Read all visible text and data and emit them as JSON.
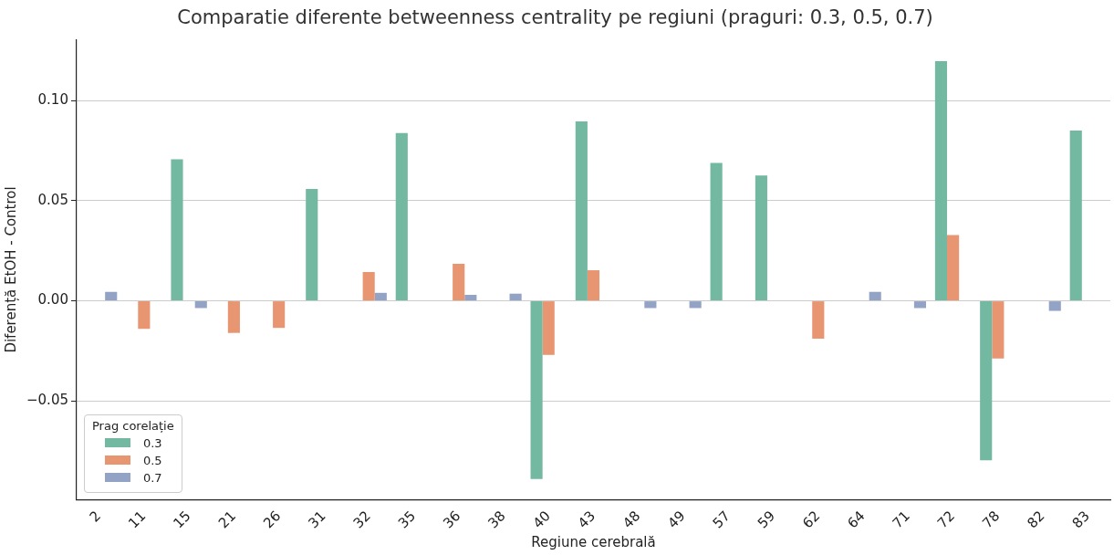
{
  "chart_data": {
    "type": "bar",
    "title": "Comparatie diferente betweenness centrality pe regiuni (praguri: 0.3, 0.5, 0.7)",
    "xlabel": "Regiune cerebrală",
    "ylabel": "Diferență EtOH - Control",
    "legend_title": "Prag corelație",
    "legend": "bottom left",
    "grid": "y",
    "categories": [
      "2",
      "11",
      "15",
      "21",
      "26",
      "31",
      "32",
      "35",
      "36",
      "38",
      "40",
      "43",
      "48",
      "49",
      "57",
      "59",
      "62",
      "64",
      "71",
      "72",
      "78",
      "82",
      "83"
    ],
    "ylim": [
      -0.0995,
      0.1306
    ],
    "yticks": [
      {
        "value": -0.05,
        "label": "−0.05"
      },
      {
        "value": 0,
        "label": "0.00"
      },
      {
        "value": 0.05,
        "label": "0.05"
      },
      {
        "value": 0.1,
        "label": "0.10"
      }
    ],
    "series": [
      {
        "name": "0.3",
        "color": "#73b8a0",
        "values": [
          null,
          null,
          0.0707,
          null,
          null,
          0.0559,
          null,
          0.0838,
          null,
          null,
          -0.089,
          0.0896,
          null,
          null,
          0.0689,
          0.0626,
          null,
          null,
          null,
          0.1198,
          -0.0797,
          null,
          0.0851
        ]
      },
      {
        "name": "0.5",
        "color": "#e89572",
        "values": [
          null,
          -0.014,
          null,
          -0.016,
          -0.0135,
          null,
          0.0144,
          null,
          0.0185,
          null,
          -0.027,
          0.0153,
          null,
          null,
          null,
          null,
          -0.0189,
          null,
          null,
          0.0329,
          -0.0288,
          null,
          null
        ]
      },
      {
        "name": "0.7",
        "color": "#93a3c5",
        "values": [
          0.0045,
          null,
          -0.0036,
          null,
          null,
          null,
          0.004,
          null,
          0.003,
          0.0036,
          null,
          null,
          -0.0036,
          -0.0036,
          null,
          null,
          null,
          0.0045,
          -0.0036,
          null,
          null,
          -0.005,
          null
        ]
      }
    ]
  }
}
